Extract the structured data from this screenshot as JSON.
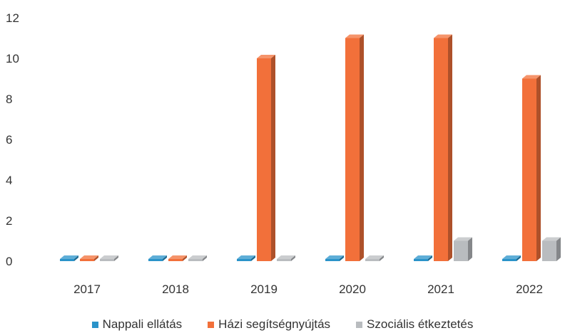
{
  "chart_data": {
    "type": "bar",
    "categories": [
      "2017",
      "2018",
      "2019",
      "2020",
      "2021",
      "2022"
    ],
    "series": [
      {
        "name": "Nappali ellátás",
        "values": [
          0,
          0,
          0,
          0,
          0,
          0
        ],
        "color": "#2a93c9"
      },
      {
        "name": "Házi segítségnyújtás",
        "values": [
          0,
          0,
          10,
          11,
          11,
          9
        ],
        "color": "#f2703a"
      },
      {
        "name": "Szociális étkeztetés",
        "values": [
          0,
          0,
          0,
          0,
          1,
          1
        ],
        "color": "#b9bcbf"
      }
    ],
    "ylim": [
      0,
      12
    ],
    "yticks": [
      "0",
      "2",
      "4",
      "6",
      "8",
      "10",
      "12"
    ],
    "grid": false,
    "legend": "bottom"
  }
}
